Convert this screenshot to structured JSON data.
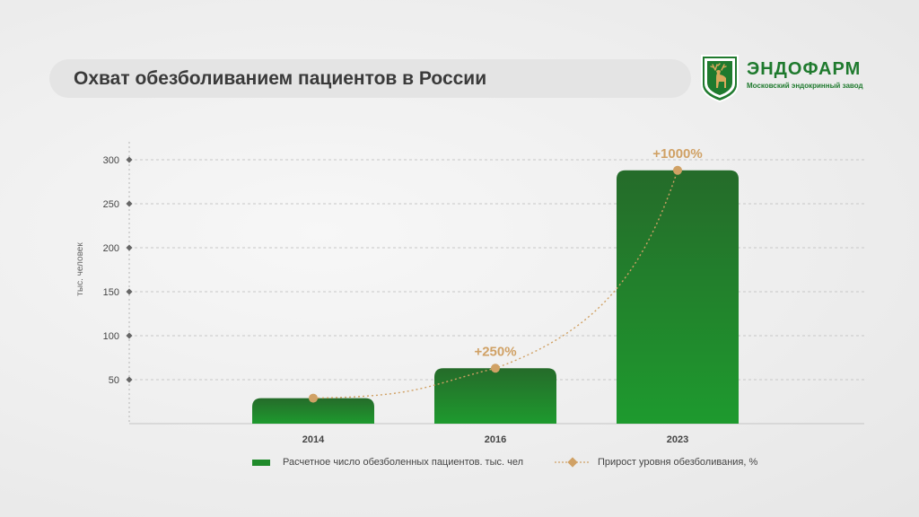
{
  "header": {
    "title": "Охват обезболиванием пациентов в России"
  },
  "logo": {
    "name": "ЭНДОФАРМ",
    "subtitle": "Московский эндокринный завод",
    "brand_color": "#1f7a2e"
  },
  "legend": {
    "bars_label": "Расчетное число обезболенных пациентов. тыс. чел",
    "line_label": "Прирост уровня обезболивания, %"
  },
  "chart_data": {
    "type": "bar",
    "title": "Охват обезболиванием пациентов в России",
    "ylabel": "тыс. человек",
    "xlabel": "",
    "ylim": [
      0,
      300
    ],
    "yticks": [
      50,
      100,
      150,
      200,
      250,
      300
    ],
    "categories": [
      "2014",
      "2016",
      "2023"
    ],
    "series": [
      {
        "name": "Расчетное число обезболенных пациентов. тыс. чел",
        "type": "bar",
        "values": [
          29,
          63,
          288
        ],
        "color": "#1f8a2a"
      },
      {
        "name": "Прирост уровня обезболивания, %",
        "type": "line",
        "style": "dotted",
        "values": [
          29,
          63,
          288
        ],
        "labels": [
          "",
          "+250%",
          "+1000%"
        ],
        "color": "#d0a165"
      }
    ],
    "grid": true,
    "legend_position": "bottom"
  }
}
